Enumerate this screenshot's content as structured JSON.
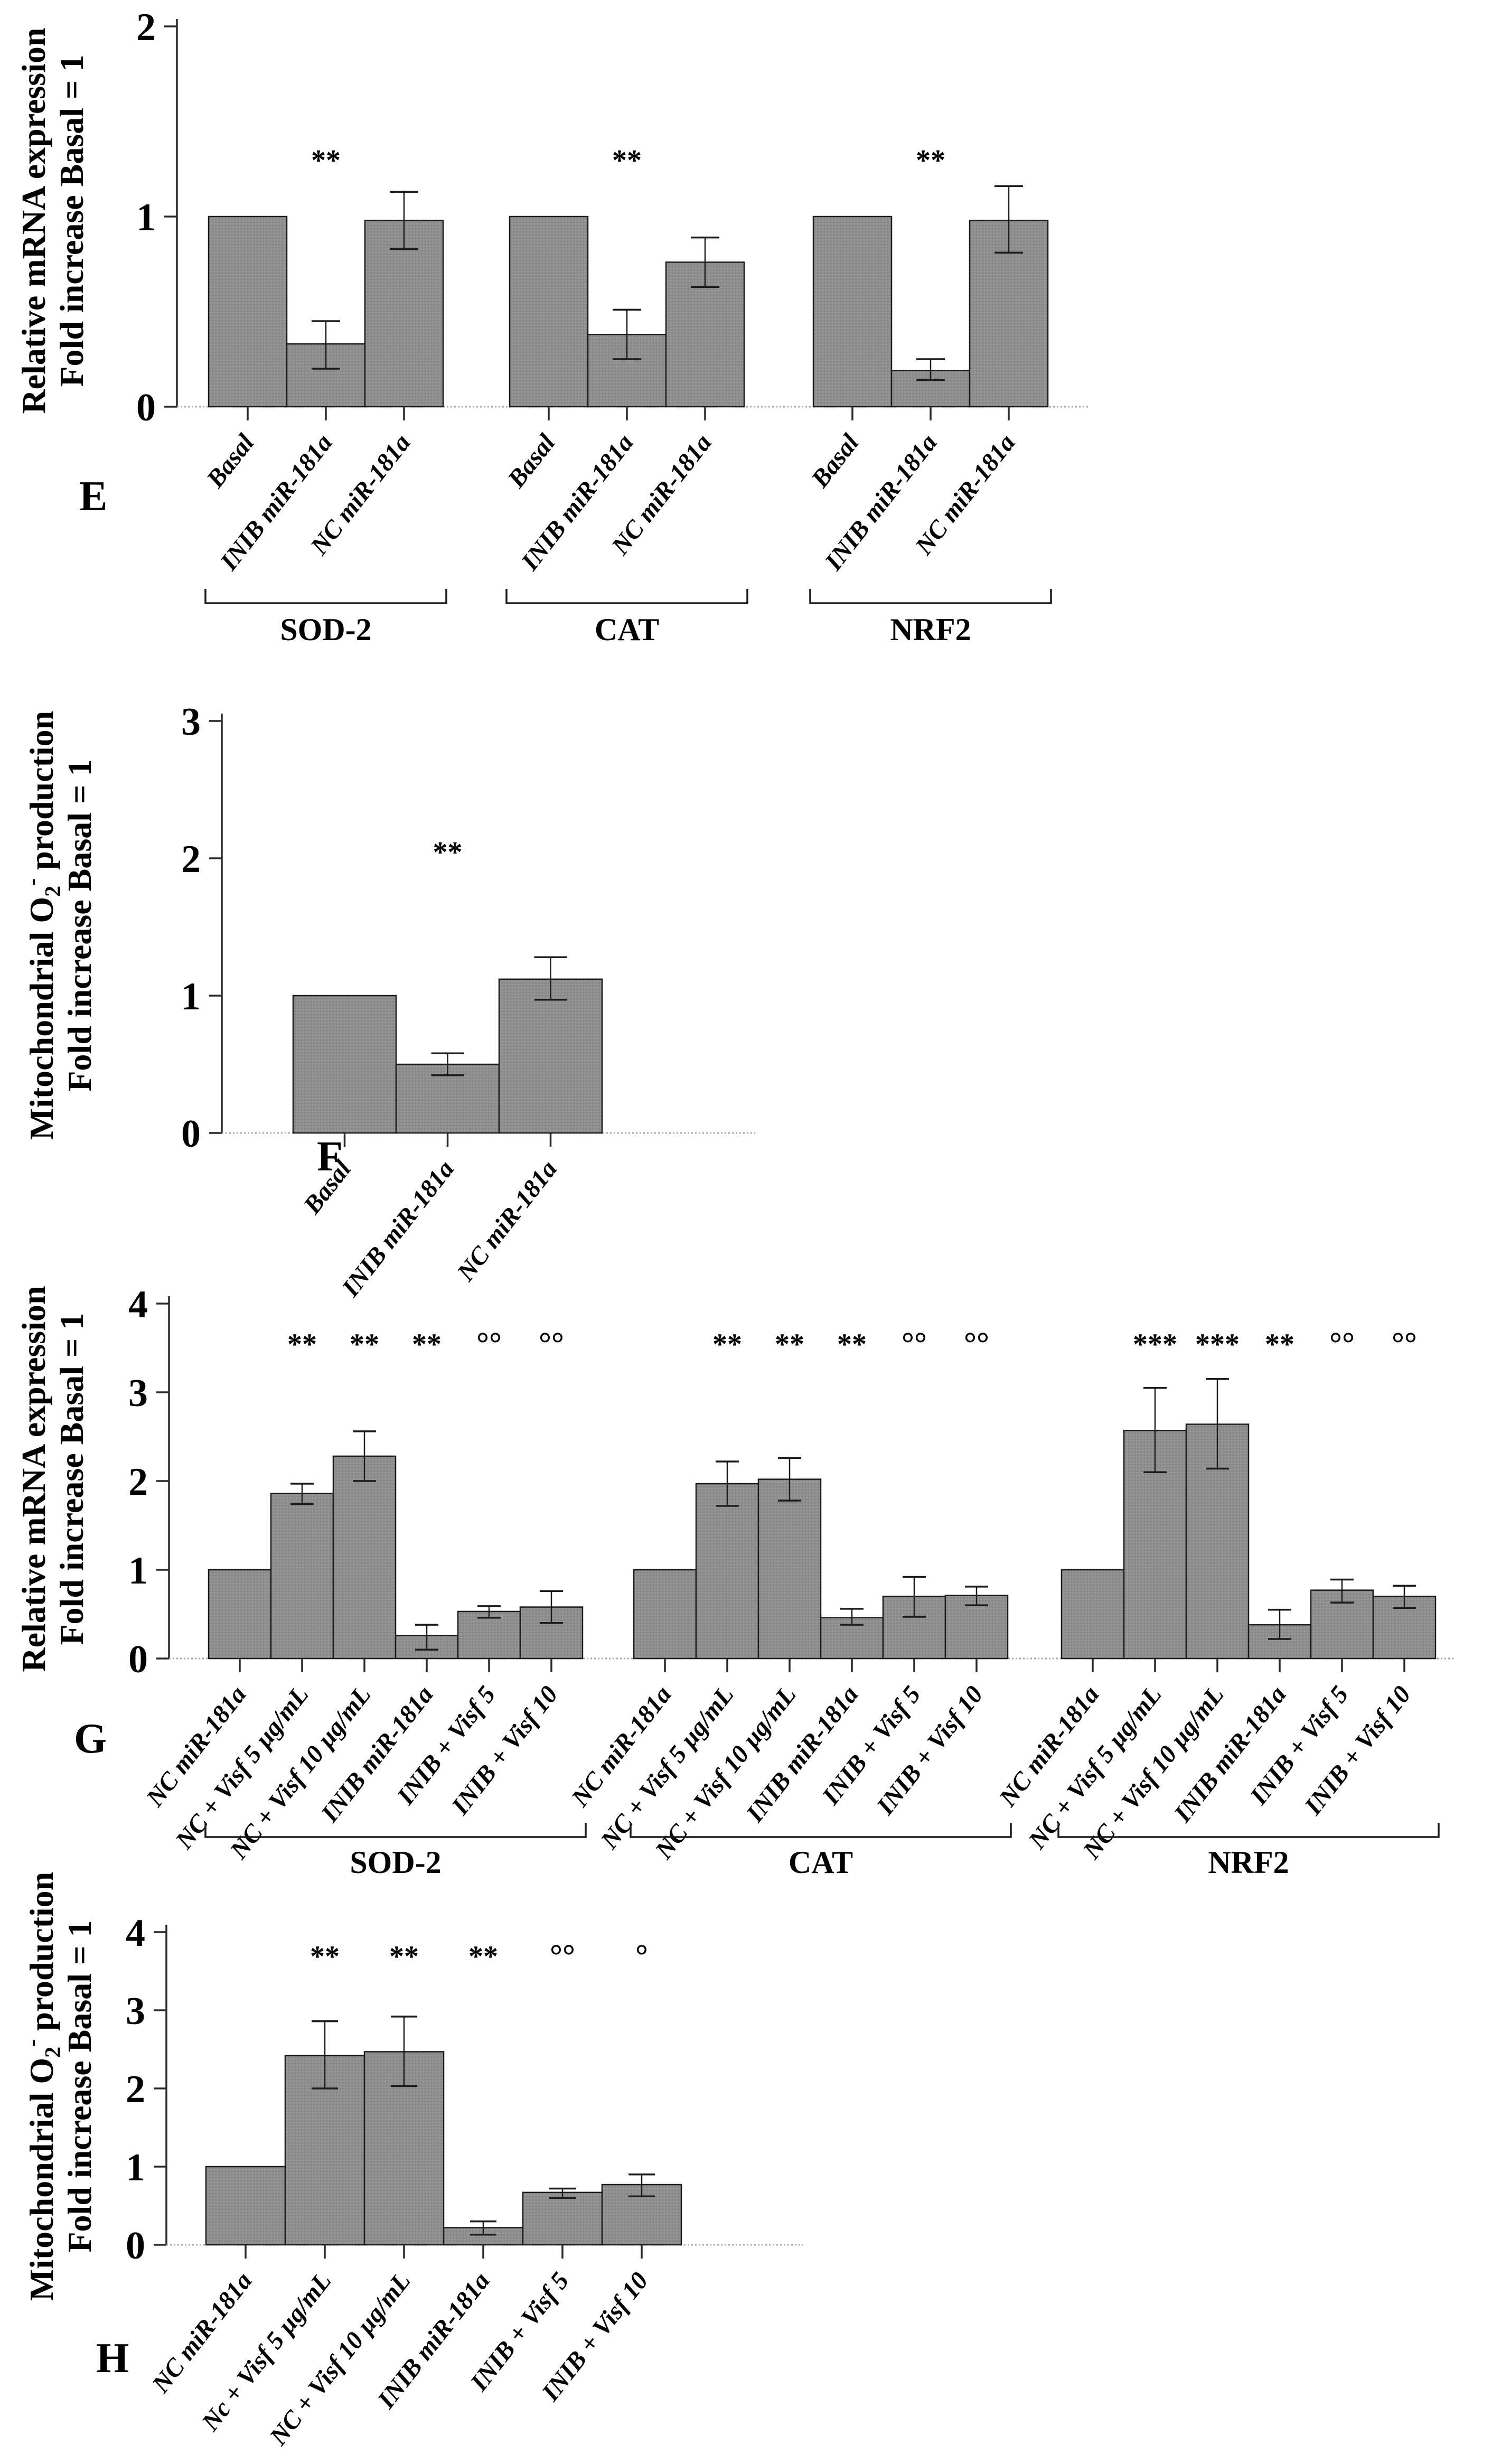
{
  "styles": {
    "background": "#ffffff",
    "bar_fill": "#8f8f8f",
    "bar_fill_dark": "#7c7c7c",
    "bar_fill_light": "#a3a3a3",
    "bar_stroke": "#1b1b1b",
    "error_color": "#1b1b1b",
    "axis_color": "#2a2a2a",
    "baseline_color": "#a8a8a8",
    "text_color": "#000000"
  },
  "chart_data": [
    {
      "id": "E",
      "panel_letter": "E",
      "type": "bar",
      "ylabel_line1": "Relative mRNA expression",
      "ylabel_line2": "Fold increase Basal = 1",
      "ylim": [
        0,
        2
      ],
      "yticks": [
        "0",
        "1",
        "2"
      ],
      "grid": false,
      "legend": null,
      "sig_y": 1.3,
      "has_group_brackets": true,
      "groups": [
        {
          "label": "SOD-2",
          "bars": [
            {
              "label": "Basal",
              "value": 1.0,
              "err_minus": 0,
              "err_plus": 0,
              "sig": ""
            },
            {
              "label": "INIB miR-181a",
              "value": 0.33,
              "err_minus": 0.13,
              "err_plus": 0.12,
              "sig": "**"
            },
            {
              "label": "NC miR-181a",
              "value": 0.98,
              "err_minus": 0.15,
              "err_plus": 0.15,
              "sig": ""
            }
          ]
        },
        {
          "label": "CAT",
          "bars": [
            {
              "label": "Basal",
              "value": 1.0,
              "err_minus": 0,
              "err_plus": 0,
              "sig": ""
            },
            {
              "label": "INIB miR-181a",
              "value": 0.38,
              "err_minus": 0.13,
              "err_plus": 0.13,
              "sig": "**"
            },
            {
              "label": "NC miR-181a",
              "value": 0.76,
              "err_minus": 0.13,
              "err_plus": 0.13,
              "sig": ""
            }
          ]
        },
        {
          "label": "NRF2",
          "bars": [
            {
              "label": "Basal",
              "value": 1.0,
              "err_minus": 0,
              "err_plus": 0,
              "sig": ""
            },
            {
              "label": "INIB miR-181a",
              "value": 0.19,
              "err_minus": 0.05,
              "err_plus": 0.06,
              "sig": "**"
            },
            {
              "label": "NC miR-181a",
              "value": 0.98,
              "err_minus": 0.17,
              "err_plus": 0.18,
              "sig": ""
            }
          ]
        }
      ]
    },
    {
      "id": "F",
      "panel_letter": "F",
      "type": "bar",
      "ylabel_line1": "Mitochondrial O2- production",
      "ylabel_line1_parts": [
        {
          "t": "Mitochondrial O"
        },
        {
          "t": "2",
          "script": "sub"
        },
        {
          "t": "-",
          "script": "sup"
        },
        {
          "t": " production"
        }
      ],
      "ylabel_line2": "Fold increase Basal = 1",
      "ylim": [
        0,
        3
      ],
      "yticks": [
        "0",
        "1",
        "2",
        "3"
      ],
      "grid": false,
      "legend": null,
      "sig_y": 2.05,
      "has_group_brackets": false,
      "groups": [
        {
          "label": "",
          "bars": [
            {
              "label": "Basal",
              "value": 1.0,
              "err_minus": 0,
              "err_plus": 0,
              "sig": ""
            },
            {
              "label": "INIB miR-181a",
              "value": 0.5,
              "err_minus": 0.08,
              "err_plus": 0.08,
              "sig": "**"
            },
            {
              "label": "NC miR-181a",
              "value": 1.12,
              "err_minus": 0.15,
              "err_plus": 0.16,
              "sig": ""
            }
          ]
        }
      ]
    },
    {
      "id": "G",
      "panel_letter": "G",
      "type": "bar",
      "ylabel_line1": "Relative mRNA expression",
      "ylabel_line2": "Fold increase Basal = 1",
      "ylim": [
        0,
        4
      ],
      "yticks": [
        "0",
        "1",
        "2",
        "3",
        "4"
      ],
      "grid": false,
      "legend": null,
      "sig_y": 3.55,
      "has_group_brackets": true,
      "groups": [
        {
          "label": "SOD-2",
          "bars": [
            {
              "label": "NC miR-181a",
              "value": 1.0,
              "err_minus": 0,
              "err_plus": 0,
              "sig": ""
            },
            {
              "label": "NC + Visf 5 µg/mL",
              "value": 1.86,
              "err_minus": 0.12,
              "err_plus": 0.11,
              "sig": "**"
            },
            {
              "label": "NC + Visf 10 µg/mL",
              "value": 2.28,
              "err_minus": 0.28,
              "err_plus": 0.28,
              "sig": "**"
            },
            {
              "label": "INIB miR-181a",
              "value": 0.26,
              "err_minus": 0.16,
              "err_plus": 0.12,
              "sig": "**"
            },
            {
              "label": "INIB + Visf 5",
              "value": 0.53,
              "err_minus": 0.07,
              "err_plus": 0.06,
              "sig": "°°"
            },
            {
              "label": "INIB + Visf 10",
              "value": 0.58,
              "err_minus": 0.18,
              "err_plus": 0.18,
              "sig": "°°"
            }
          ]
        },
        {
          "label": "CAT",
          "bars": [
            {
              "label": "NC miR-181a",
              "value": 1.0,
              "err_minus": 0,
              "err_plus": 0,
              "sig": ""
            },
            {
              "label": "NC + Visf 5 µg/mL",
              "value": 1.97,
              "err_minus": 0.25,
              "err_plus": 0.25,
              "sig": "**"
            },
            {
              "label": "NC + Visf 10 µg/mL",
              "value": 2.02,
              "err_minus": 0.24,
              "err_plus": 0.24,
              "sig": "**"
            },
            {
              "label": "INIB miR-181a",
              "value": 0.46,
              "err_minus": 0.08,
              "err_plus": 0.1,
              "sig": "**"
            },
            {
              "label": "INIB + Visf 5",
              "value": 0.7,
              "err_minus": 0.23,
              "err_plus": 0.22,
              "sig": "°°"
            },
            {
              "label": "INIB + Visf 10",
              "value": 0.71,
              "err_minus": 0.11,
              "err_plus": 0.1,
              "sig": "°°"
            }
          ]
        },
        {
          "label": "NRF2",
          "bars": [
            {
              "label": "NC miR-181a",
              "value": 1.0,
              "err_minus": 0,
              "err_plus": 0,
              "sig": ""
            },
            {
              "label": "NC + Visf 5 µg/mL",
              "value": 2.57,
              "err_minus": 0.47,
              "err_plus": 0.48,
              "sig": "***"
            },
            {
              "label": "NC + Visf 10 µg/mL",
              "value": 2.64,
              "err_minus": 0.5,
              "err_plus": 0.51,
              "sig": "***"
            },
            {
              "label": "INIB miR-181a",
              "value": 0.38,
              "err_minus": 0.16,
              "err_plus": 0.17,
              "sig": "**"
            },
            {
              "label": "INIB + Visf 5",
              "value": 0.77,
              "err_minus": 0.14,
              "err_plus": 0.12,
              "sig": "°°"
            },
            {
              "label": "INIB + Visf 10",
              "value": 0.7,
              "err_minus": 0.13,
              "err_plus": 0.12,
              "sig": "°°"
            }
          ]
        }
      ]
    },
    {
      "id": "H",
      "panel_letter": "H",
      "type": "bar",
      "ylabel_line1": "Mitochondrial O2- production",
      "ylabel_line1_parts": [
        {
          "t": "Mitochondrial O"
        },
        {
          "t": "2",
          "script": "sub"
        },
        {
          "t": "-",
          "script": "sup"
        },
        {
          "t": " production"
        }
      ],
      "ylabel_line2": "Fold increase Basal = 1",
      "ylim": [
        0,
        4
      ],
      "yticks": [
        "0",
        "1",
        "2",
        "3",
        "4"
      ],
      "grid": false,
      "legend": null,
      "sig_y": 3.7,
      "has_group_brackets": false,
      "groups": [
        {
          "label": "",
          "bars": [
            {
              "label": "NC miR-181a",
              "value": 1.0,
              "err_minus": 0,
              "err_plus": 0,
              "sig": ""
            },
            {
              "label": "Nc + Visf 5 µg/mL",
              "value": 2.42,
              "err_minus": 0.42,
              "err_plus": 0.44,
              "sig": "**"
            },
            {
              "label": "NC + Visf 10 µg/mL",
              "value": 2.47,
              "err_minus": 0.44,
              "err_plus": 0.45,
              "sig": "**"
            },
            {
              "label": "INIB miR-181a",
              "value": 0.22,
              "err_minus": 0.09,
              "err_plus": 0.08,
              "sig": "**"
            },
            {
              "label": "INIB + Visf 5",
              "value": 0.67,
              "err_minus": 0.07,
              "err_plus": 0.05,
              "sig": "°°"
            },
            {
              "label": "INIB + Visf 10",
              "value": 0.77,
              "err_minus": 0.15,
              "err_plus": 0.13,
              "sig": "°"
            }
          ]
        }
      ]
    }
  ]
}
